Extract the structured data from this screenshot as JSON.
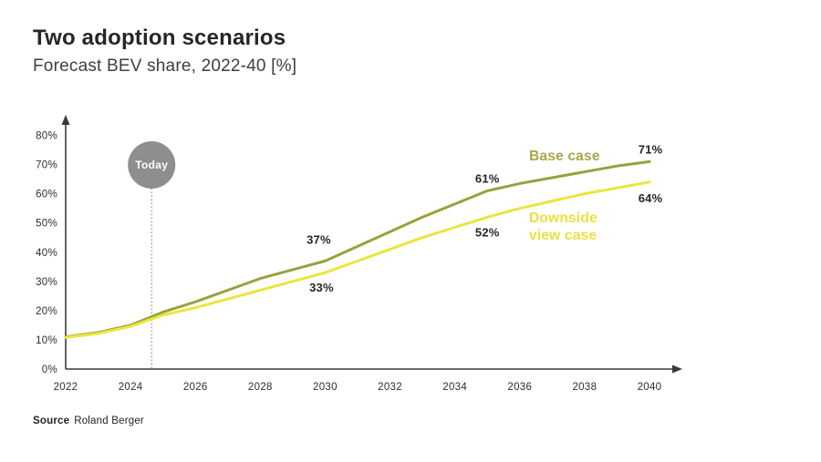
{
  "header": {
    "title": "Two adoption scenarios",
    "subtitle": "Forecast BEV share, 2022-40 [%]"
  },
  "source": {
    "label": "Source",
    "value": "Roland Berger"
  },
  "chart_data": {
    "type": "line",
    "title": "Two adoption scenarios",
    "subtitle": "Forecast BEV share, 2022-40 [%]",
    "xlabel": "",
    "ylabel": "",
    "x_range": [
      2022,
      2040
    ],
    "y_range": [
      0,
      80
    ],
    "grid": false,
    "legend_position": "inline-right",
    "x_tick_labels": [
      "2022",
      "2024",
      "2026",
      "2028",
      "2030",
      "2032",
      "2034",
      "2036",
      "2038",
      "2040"
    ],
    "y_tick_labels": [
      "0%",
      "10%",
      "20%",
      "30%",
      "40%",
      "50%",
      "60%",
      "70%",
      "80%"
    ],
    "years": [
      2022,
      2023,
      2024,
      2025,
      2026,
      2027,
      2028,
      2029,
      2030,
      2031,
      2032,
      2033,
      2034,
      2035,
      2036,
      2037,
      2038,
      2039,
      2040
    ],
    "series": [
      {
        "id": "base",
        "name": "Base case",
        "name_lines": [
          "Base case"
        ],
        "color": "#99a13c",
        "label_color": "#a6a748",
        "values": [
          11,
          12.5,
          15,
          19.5,
          23,
          27,
          31,
          34,
          37,
          42,
          47,
          52,
          56.5,
          61,
          63.5,
          65.5,
          67.5,
          69.5,
          71
        ]
      },
      {
        "id": "downside",
        "name": "Downside view case",
        "name_lines": [
          "Downside",
          "view case"
        ],
        "color": "#ece53c",
        "label_color": "#e9e23e",
        "values": [
          10.8,
          12.2,
          14.6,
          18.5,
          21,
          24,
          27,
          30,
          33,
          37,
          41,
          45,
          48.5,
          52,
          55,
          57.5,
          60,
          62,
          64
        ]
      }
    ],
    "point_labels": [
      {
        "series": 0,
        "year": 2030,
        "text": "37%"
      },
      {
        "series": 0,
        "year": 2035,
        "text": "61%"
      },
      {
        "series": 0,
        "year": 2040,
        "text": "71%"
      },
      {
        "series": 1,
        "year": 2030,
        "text": "33%"
      },
      {
        "series": 1,
        "year": 2035,
        "text": "52%"
      },
      {
        "series": 1,
        "year": 2040,
        "text": "64%"
      }
    ],
    "annotations": {
      "today": {
        "label": "Today",
        "year": 2024.65,
        "value_at": 19,
        "color": "#8e8e90",
        "text_color": "#ffffff"
      }
    },
    "axis_color": "#3a3a3a"
  }
}
